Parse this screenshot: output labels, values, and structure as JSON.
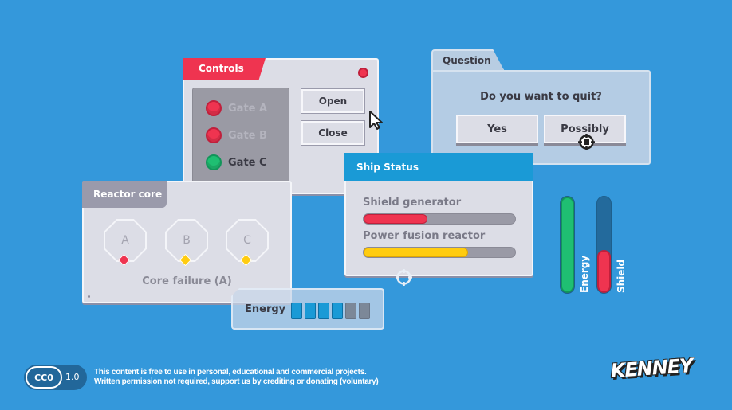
{
  "colors": {
    "background": "#3498db",
    "red": "#ef3450",
    "green": "#1fbf72",
    "blue": "#1a9ad6",
    "yellow": "#ffcc10"
  },
  "controls": {
    "title": "Controls",
    "gates": [
      {
        "label": "Gate A",
        "state": "red"
      },
      {
        "label": "Gate B",
        "state": "red"
      },
      {
        "label": "Gate C",
        "state": "green"
      }
    ],
    "open_label": "Open",
    "close_label": "Close"
  },
  "reactor": {
    "title": "Reactor core",
    "cores": [
      {
        "label": "A",
        "status": "red"
      },
      {
        "label": "B",
        "status": "yellow"
      },
      {
        "label": "C",
        "status": "yellow"
      }
    ],
    "status_text": "Core failure (A)"
  },
  "energy_panel": {
    "label": "Energy",
    "segments_total": 6,
    "segments_filled": 4
  },
  "question": {
    "title": "Question",
    "prompt": "Do you want to quit?",
    "yes_label": "Yes",
    "possibly_label": "Possibly"
  },
  "ship_status": {
    "title": "Ship Status",
    "bars": [
      {
        "label": "Shield generator",
        "value": 0.42,
        "color": "#ef3450"
      },
      {
        "label": "Power fusion reactor",
        "value": 0.69,
        "color": "#ffcc10"
      }
    ]
  },
  "vertical_bars": [
    {
      "label": "Energy",
      "value": 1.0,
      "color": "#1fbf72"
    },
    {
      "label": "Shield",
      "value": 0.45,
      "color": "#ef3450"
    }
  ],
  "footer": {
    "license_badge": "CC0",
    "license_version": "1.0",
    "line1": "This content is free to use in personal, educational and commercial projects.",
    "line2": "Written permission not required, support us by crediting or donating (voluntary)",
    "logo": "KENNEY"
  },
  "icons": [
    "cursor-arrow-icon",
    "crosshair-icon"
  ]
}
